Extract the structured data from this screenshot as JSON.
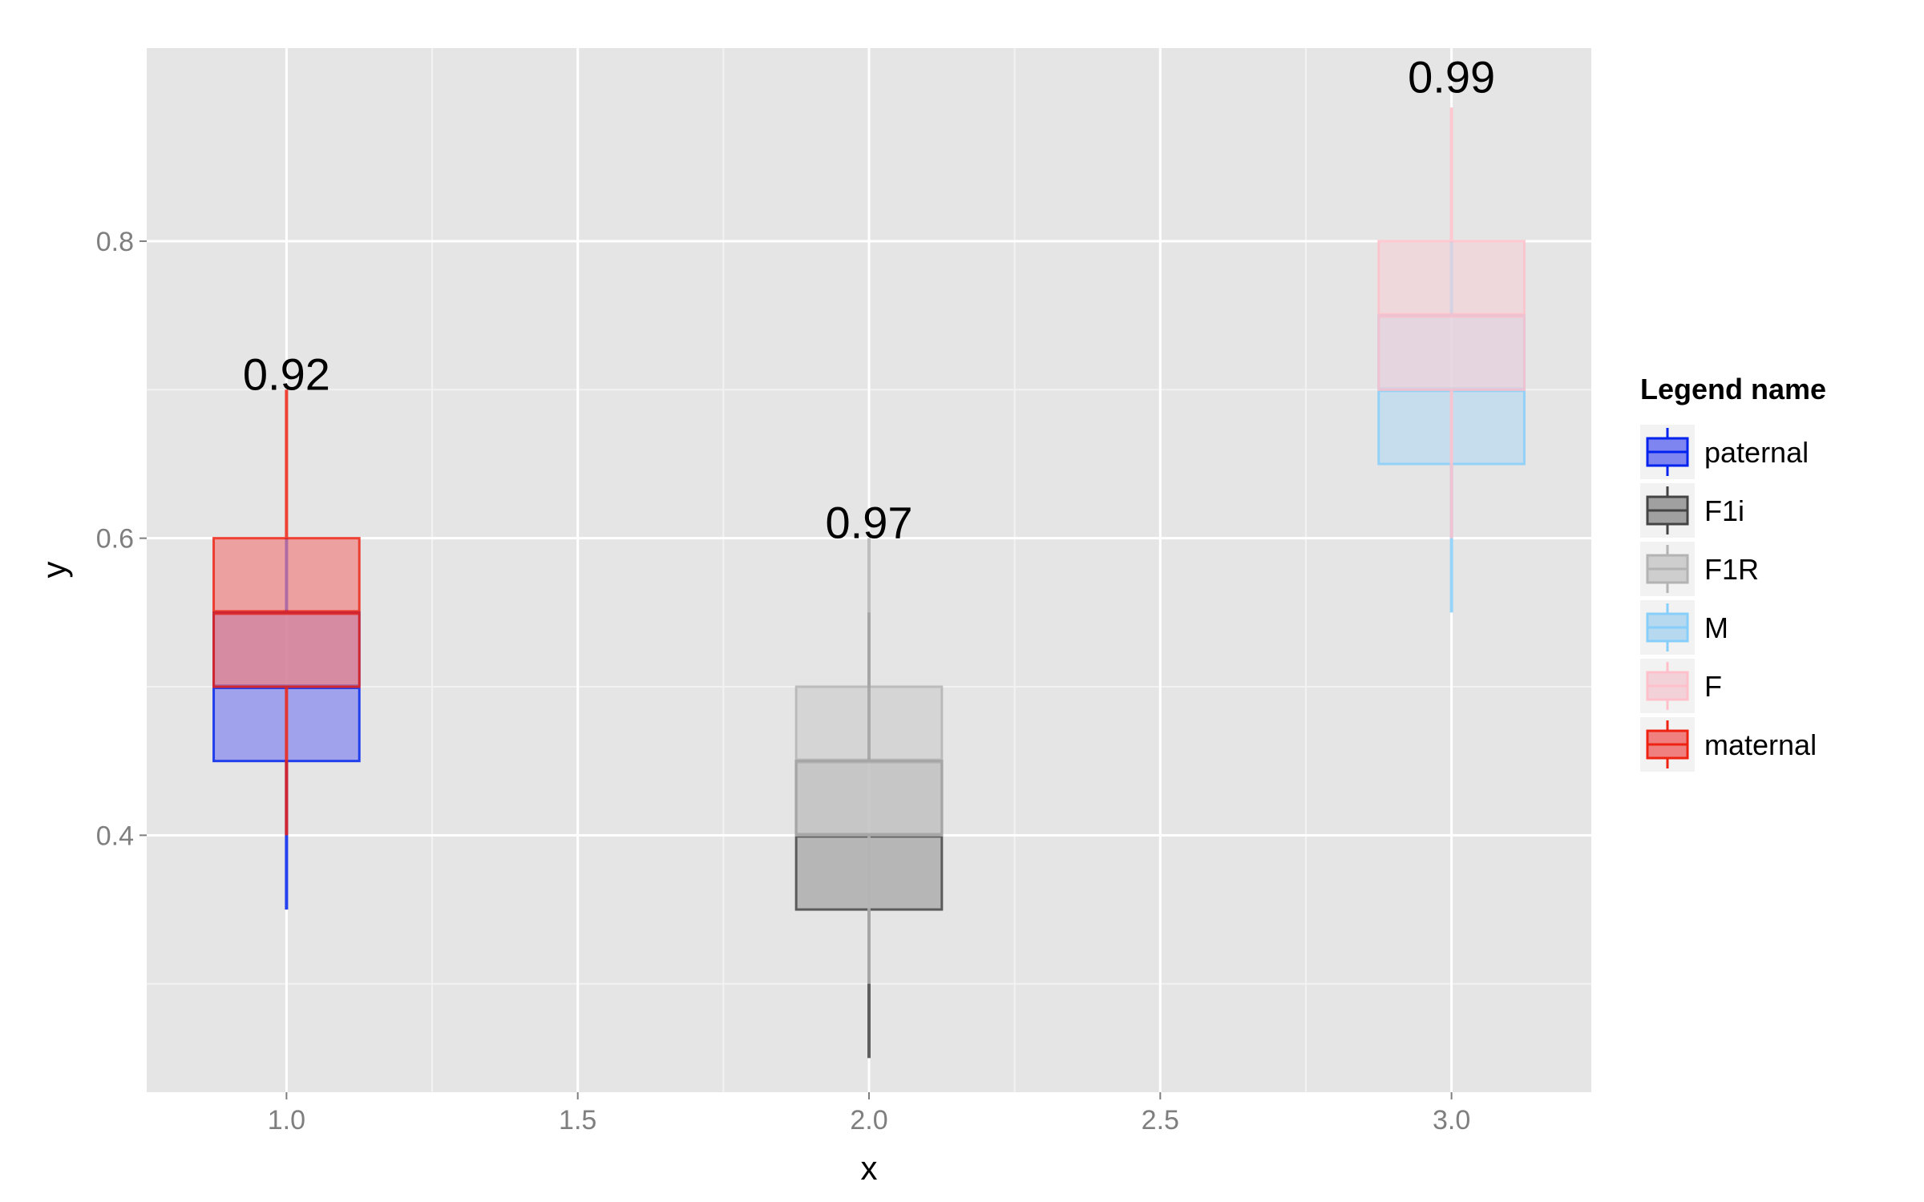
{
  "chart_data": {
    "type": "boxplot",
    "xlabel": "x",
    "ylabel": "y",
    "xlim": [
      0.76,
      3.24
    ],
    "ylim": [
      0.227,
      0.93
    ],
    "x_ticks": [
      1.0,
      1.5,
      2.0,
      2.5,
      3.0
    ],
    "x_tick_labels": [
      "1.0",
      "1.5",
      "2.0",
      "2.5",
      "3.0"
    ],
    "y_ticks": [
      0.4,
      0.6,
      0.8
    ],
    "y_tick_labels": [
      "0.4",
      "0.6",
      "0.8"
    ],
    "grid": true,
    "legend": {
      "title": "Legend name",
      "position": "right",
      "entries": [
        "paternal",
        "F1i",
        "F1R",
        "M",
        "F",
        "maternal"
      ]
    },
    "series": [
      {
        "name": "paternal",
        "x": 1.0,
        "whisker_low": 0.35,
        "q1": 0.45,
        "median": 0.5,
        "q3": 0.55,
        "whisker_high": 0.6,
        "color": "#0022ee",
        "fill": "#7f85f0"
      },
      {
        "name": "maternal",
        "x": 1.0,
        "whisker_low": 0.4,
        "q1": 0.5,
        "median": 0.55,
        "q3": 0.6,
        "whisker_high": 0.7,
        "color": "#ee2211",
        "fill": "#f08080"
      },
      {
        "name": "F1i",
        "x": 2.0,
        "whisker_low": 0.25,
        "q1": 0.35,
        "median": 0.4,
        "q3": 0.45,
        "whisker_high": 0.55,
        "color": "#444444",
        "fill": "#a0a0a0"
      },
      {
        "name": "F1R",
        "x": 2.0,
        "whisker_low": 0.3,
        "q1": 0.4,
        "median": 0.45,
        "q3": 0.5,
        "whisker_high": 0.6,
        "color": "#b3b3b3",
        "fill": "#cecece"
      },
      {
        "name": "M",
        "x": 3.0,
        "whisker_low": 0.55,
        "q1": 0.65,
        "median": 0.7,
        "q3": 0.75,
        "whisker_high": 0.8,
        "color": "#87cefa",
        "fill": "#b7d9ef"
      },
      {
        "name": "F",
        "x": 3.0,
        "whisker_low": 0.6,
        "q1": 0.7,
        "median": 0.75,
        "q3": 0.8,
        "whisker_high": 0.89,
        "color": "#ffc0cb",
        "fill": "#f2d2d8"
      }
    ],
    "annotations": [
      {
        "x": 1.0,
        "y": 0.7,
        "text": "0.92"
      },
      {
        "x": 2.0,
        "y": 0.6,
        "text": "0.97"
      },
      {
        "x": 3.0,
        "y": 0.9,
        "text": "0.99"
      }
    ]
  }
}
